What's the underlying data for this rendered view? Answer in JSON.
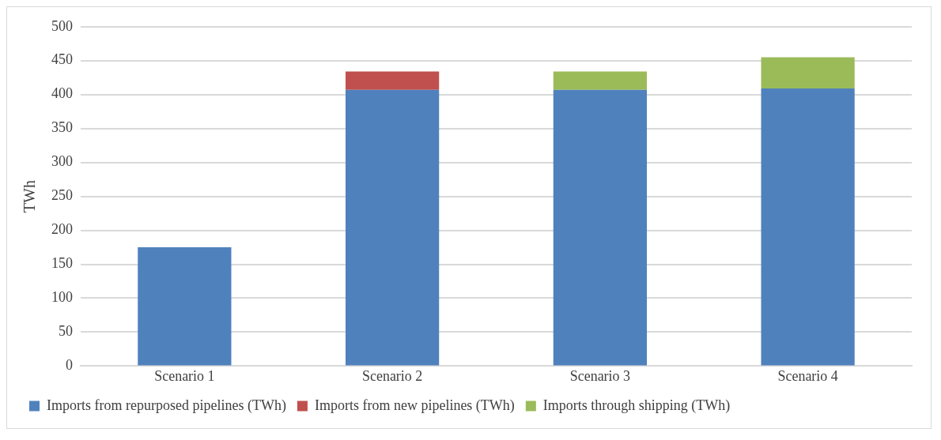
{
  "chart_data": {
    "type": "bar",
    "stacked": true,
    "ylabel": "TWh",
    "categories": [
      "Scenario 1",
      "Scenario 2",
      "Scenario 3",
      "Scenario 4"
    ],
    "series": [
      {
        "name": "Imports from repurposed pipelines (TWh)",
        "color": "#4f81bd",
        "values": [
          175,
          407,
          407,
          409
        ]
      },
      {
        "name": "Imports from new pipelines (TWh)",
        "color": "#c0504d",
        "values": [
          0,
          27,
          0,
          0
        ]
      },
      {
        "name": "Imports through shipping (TWh)",
        "color": "#9bbb59",
        "values": [
          0,
          0,
          27,
          46
        ]
      }
    ],
    "ylim": [
      0,
      500
    ],
    "yticks": [
      0,
      50,
      100,
      150,
      200,
      250,
      300,
      350,
      400,
      450,
      500
    ],
    "grid": "y",
    "legend": "bottom"
  }
}
